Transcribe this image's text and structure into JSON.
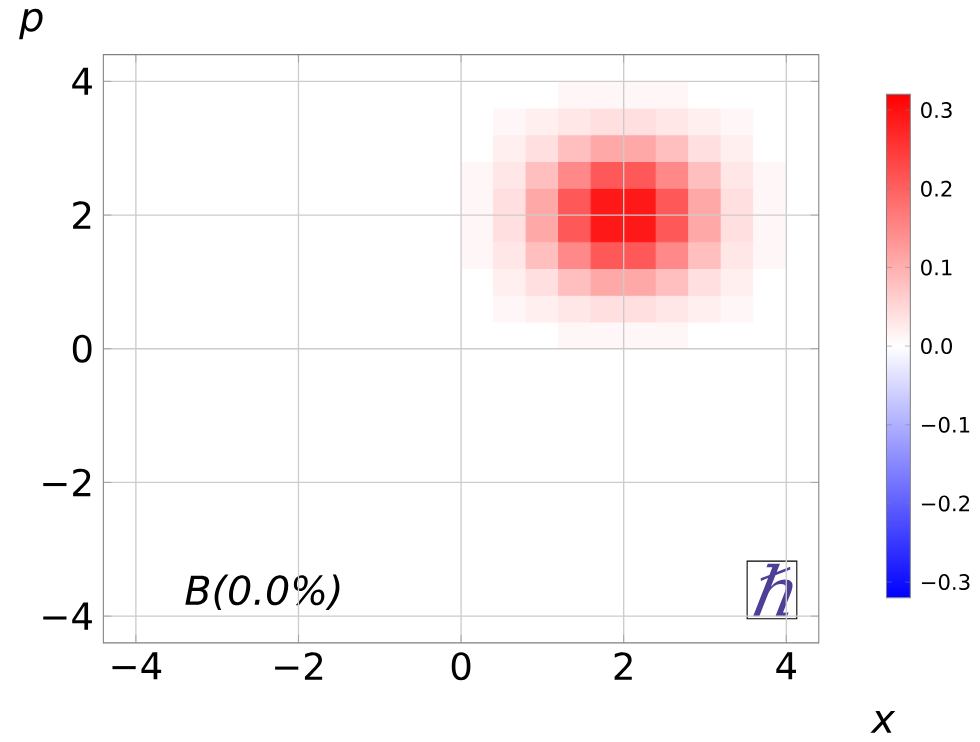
{
  "chart_data": {
    "type": "heatmap",
    "xlabel": "x",
    "ylabel": "p",
    "annotations": [
      "B(0.0%)",
      "ℏ"
    ],
    "xlim": [
      -4.4,
      4.4
    ],
    "ylim": [
      -4.4,
      4.4
    ],
    "xticks": [
      {
        "value": -4,
        "label": "−4"
      },
      {
        "value": -2,
        "label": "−2"
      },
      0,
      2,
      4
    ],
    "yticks": [
      {
        "value": -4,
        "label": "−4"
      },
      {
        "value": -2,
        "label": "−2"
      },
      0,
      2,
      4
    ],
    "clim": [
      -0.32,
      0.32
    ],
    "cticks": [
      {
        "value": -0.3,
        "label": "−0.3"
      },
      {
        "value": -0.2,
        "label": "−0.2"
      },
      {
        "value": -0.1,
        "label": "−0.1"
      },
      {
        "value": 0.0,
        "label": "0.0"
      },
      {
        "value": 0.1,
        "label": "0.1"
      },
      {
        "value": 0.2,
        "label": "0.2"
      },
      {
        "value": 0.3,
        "label": "0.3"
      }
    ],
    "grid": true,
    "cells": [
      [
        0,
        0,
        0,
        0,
        0,
        0,
        0,
        0,
        0,
        0,
        0,
        0,
        0,
        0,
        0,
        0,
        0,
        0,
        0,
        0,
        0,
        0
      ],
      [
        0,
        0,
        0,
        0,
        0,
        0,
        0,
        0,
        0,
        0,
        0,
        0,
        0,
        0,
        0.01,
        0.01,
        0.01,
        0.01,
        0,
        0,
        0,
        0
      ],
      [
        0,
        0,
        0,
        0,
        0,
        0,
        0,
        0,
        0,
        0,
        0,
        0,
        0.01,
        0.02,
        0.03,
        0.04,
        0.04,
        0.03,
        0.02,
        0.01,
        0,
        0
      ],
      [
        0,
        0,
        0,
        0,
        0,
        0,
        0,
        0,
        0,
        0,
        0,
        0,
        0.02,
        0.04,
        0.08,
        0.11,
        0.11,
        0.08,
        0.04,
        0.02,
        0,
        0
      ],
      [
        0,
        0,
        0,
        0,
        0,
        0,
        0,
        0,
        0,
        0,
        0,
        0.01,
        0.03,
        0.08,
        0.15,
        0.21,
        0.21,
        0.15,
        0.08,
        0.03,
        0.01,
        0
      ],
      [
        0,
        0,
        0,
        0,
        0,
        0,
        0,
        0,
        0,
        0,
        0,
        0.01,
        0.04,
        0.11,
        0.21,
        0.29,
        0.29,
        0.21,
        0.11,
        0.04,
        0.01,
        0
      ],
      [
        0,
        0,
        0,
        0,
        0,
        0,
        0,
        0,
        0,
        0,
        0,
        0.01,
        0.04,
        0.11,
        0.21,
        0.29,
        0.29,
        0.21,
        0.11,
        0.04,
        0.01,
        0
      ],
      [
        0,
        0,
        0,
        0,
        0,
        0,
        0,
        0,
        0,
        0,
        0,
        0.01,
        0.03,
        0.08,
        0.15,
        0.21,
        0.21,
        0.15,
        0.08,
        0.03,
        0.01,
        0
      ],
      [
        0,
        0,
        0,
        0,
        0,
        0,
        0,
        0,
        0,
        0,
        0,
        0,
        0.02,
        0.04,
        0.08,
        0.11,
        0.11,
        0.08,
        0.04,
        0.02,
        0,
        0
      ],
      [
        0,
        0,
        0,
        0,
        0,
        0,
        0,
        0,
        0,
        0,
        0,
        0,
        0.01,
        0.02,
        0.03,
        0.04,
        0.04,
        0.03,
        0.02,
        0.01,
        0,
        0
      ],
      [
        0,
        0,
        0,
        0,
        0,
        0,
        0,
        0,
        0,
        0,
        0,
        0,
        0,
        0,
        0.01,
        0.01,
        0.01,
        0.01,
        0,
        0,
        0,
        0
      ],
      [
        0,
        0,
        0,
        0,
        0,
        0,
        0,
        0,
        0,
        0,
        0,
        0,
        0,
        0,
        0,
        0,
        0,
        0,
        0,
        0,
        0,
        0
      ],
      [
        0,
        0,
        0,
        0,
        0,
        0,
        0,
        0,
        0,
        0,
        0,
        0,
        0,
        0,
        0,
        0,
        0,
        0,
        0,
        0,
        0,
        0
      ],
      [
        0,
        0,
        0,
        0,
        0,
        0,
        0,
        0,
        0,
        0,
        0,
        0,
        0,
        0,
        0,
        0,
        0,
        0,
        0,
        0,
        0,
        0
      ],
      [
        0,
        0,
        0,
        0,
        0,
        0,
        0,
        0,
        0,
        0,
        0,
        0,
        0,
        0,
        0,
        0,
        0,
        0,
        0,
        0,
        0,
        0
      ],
      [
        0,
        0,
        0,
        0,
        0,
        0,
        0,
        0,
        0,
        0,
        0,
        0,
        0,
        0,
        0,
        0,
        0,
        0,
        0,
        0,
        0,
        0
      ],
      [
        0,
        0,
        0,
        0,
        0,
        0,
        0,
        0,
        0,
        0,
        0,
        0,
        0,
        0,
        0,
        0,
        0,
        0,
        0,
        0,
        0,
        0
      ],
      [
        0,
        0,
        0,
        0,
        0,
        0,
        0,
        0,
        0,
        0,
        0,
        0,
        0,
        0,
        0,
        0,
        0,
        0,
        0,
        0,
        0,
        0
      ],
      [
        0,
        0,
        0,
        0,
        0,
        0,
        0,
        0,
        0,
        0,
        0,
        0,
        0,
        0,
        0,
        0,
        0,
        0,
        0,
        0,
        0,
        0
      ],
      [
        0,
        0,
        0,
        0,
        0,
        0,
        0,
        0,
        0,
        0,
        0,
        0,
        0,
        0,
        0,
        0,
        0,
        0,
        0,
        0,
        0,
        0
      ],
      [
        0,
        0,
        0,
        0,
        0,
        0,
        0,
        0,
        0,
        0,
        0,
        0,
        0,
        0,
        0,
        0,
        0,
        0,
        0,
        0,
        0,
        0
      ],
      [
        0,
        0,
        0,
        0,
        0,
        0,
        0,
        0,
        0,
        0,
        0,
        0,
        0,
        0,
        0,
        0,
        0,
        0,
        0,
        0,
        0,
        0
      ]
    ]
  }
}
